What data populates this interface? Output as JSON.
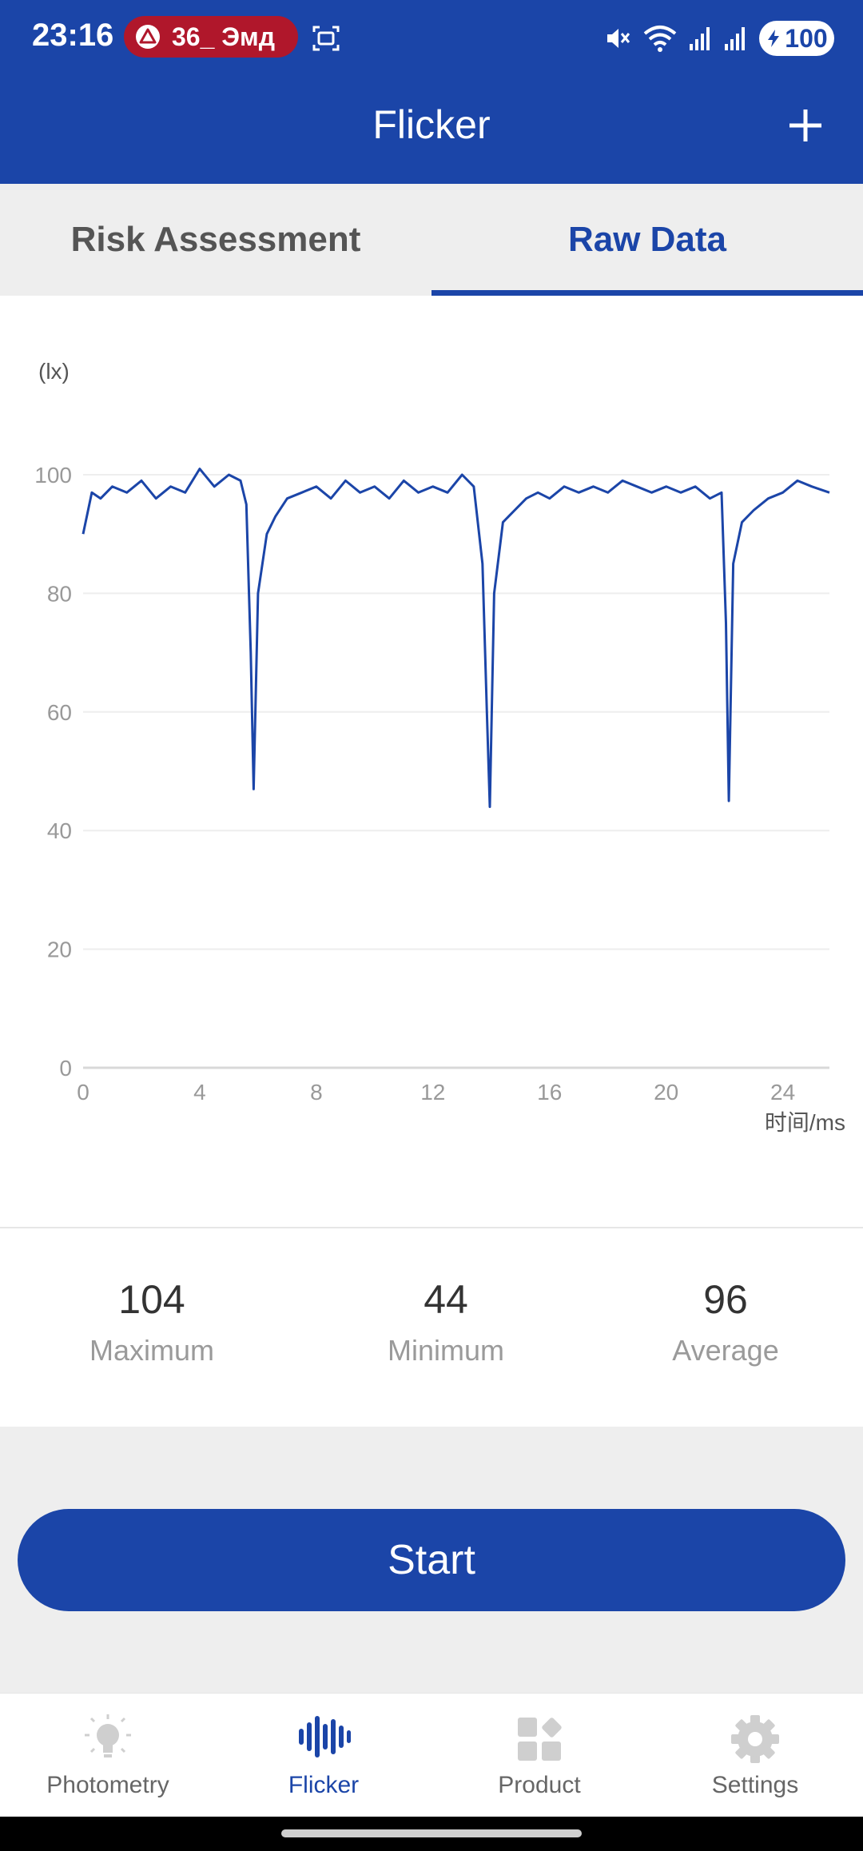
{
  "status_bar": {
    "time": "23:16",
    "notification_pill": "36_ Эмд",
    "battery": "100",
    "pill_color": "#b0172b"
  },
  "app_bar": {
    "title": "Flicker",
    "add_icon": "plus-icon",
    "color": "#1b45a8"
  },
  "tabs": [
    {
      "label": "Risk Assessment",
      "active": false
    },
    {
      "label": "Raw Data",
      "active": true
    }
  ],
  "chart_data": {
    "type": "line",
    "y_unit_label": "(lx)",
    "xlabel": "时间/ms",
    "x_ticks": [
      "0",
      "4",
      "8",
      "12",
      "16",
      "20",
      "24"
    ],
    "y_ticks": [
      "0",
      "20",
      "40",
      "60",
      "80",
      "100"
    ],
    "xlim": [
      0,
      25.6
    ],
    "ylim": [
      0,
      100
    ],
    "grid": true,
    "series": [
      {
        "color": "#1b45a8",
        "x": [
          0,
          0.3,
          0.6,
          1.0,
          1.5,
          2.0,
          2.5,
          3.0,
          3.5,
          4.0,
          4.5,
          5.0,
          5.4,
          5.6,
          5.75,
          5.85,
          6.0,
          6.3,
          6.6,
          7.0,
          7.5,
          8.0,
          8.5,
          9.0,
          9.5,
          10.0,
          10.5,
          11.0,
          11.5,
          12.0,
          12.5,
          13.0,
          13.4,
          13.7,
          13.85,
          13.95,
          14.1,
          14.4,
          14.8,
          15.2,
          15.6,
          16.0,
          16.5,
          17.0,
          17.5,
          18.0,
          18.5,
          19.0,
          19.5,
          20.0,
          20.5,
          21.0,
          21.5,
          21.9,
          22.05,
          22.15,
          22.3,
          22.6,
          23.0,
          23.5,
          24.0,
          24.5,
          25.0,
          25.6
        ],
        "values": [
          90,
          97,
          96,
          98,
          97,
          99,
          96,
          98,
          97,
          101,
          98,
          100,
          99,
          95,
          70,
          47,
          80,
          90,
          93,
          96,
          97,
          98,
          96,
          99,
          97,
          98,
          96,
          99,
          97,
          98,
          97,
          100,
          98,
          85,
          60,
          44,
          80,
          92,
          94,
          96,
          97,
          96,
          98,
          97,
          98,
          97,
          99,
          98,
          97,
          98,
          97,
          98,
          96,
          97,
          75,
          45,
          85,
          92,
          94,
          96,
          97,
          99,
          98,
          97
        ]
      }
    ]
  },
  "stats": [
    {
      "value": "104",
      "label": "Maximum"
    },
    {
      "value": "44",
      "label": "Minimum"
    },
    {
      "value": "96",
      "label": "Average"
    }
  ],
  "start_button": {
    "label": "Start"
  },
  "bottom_nav": [
    {
      "label": "Photometry",
      "icon": "bulb-icon",
      "active": false
    },
    {
      "label": "Flicker",
      "icon": "waveform-icon",
      "active": true
    },
    {
      "label": "Product",
      "icon": "grid-icon",
      "active": false
    },
    {
      "label": "Settings",
      "icon": "gear-icon",
      "active": false
    }
  ]
}
